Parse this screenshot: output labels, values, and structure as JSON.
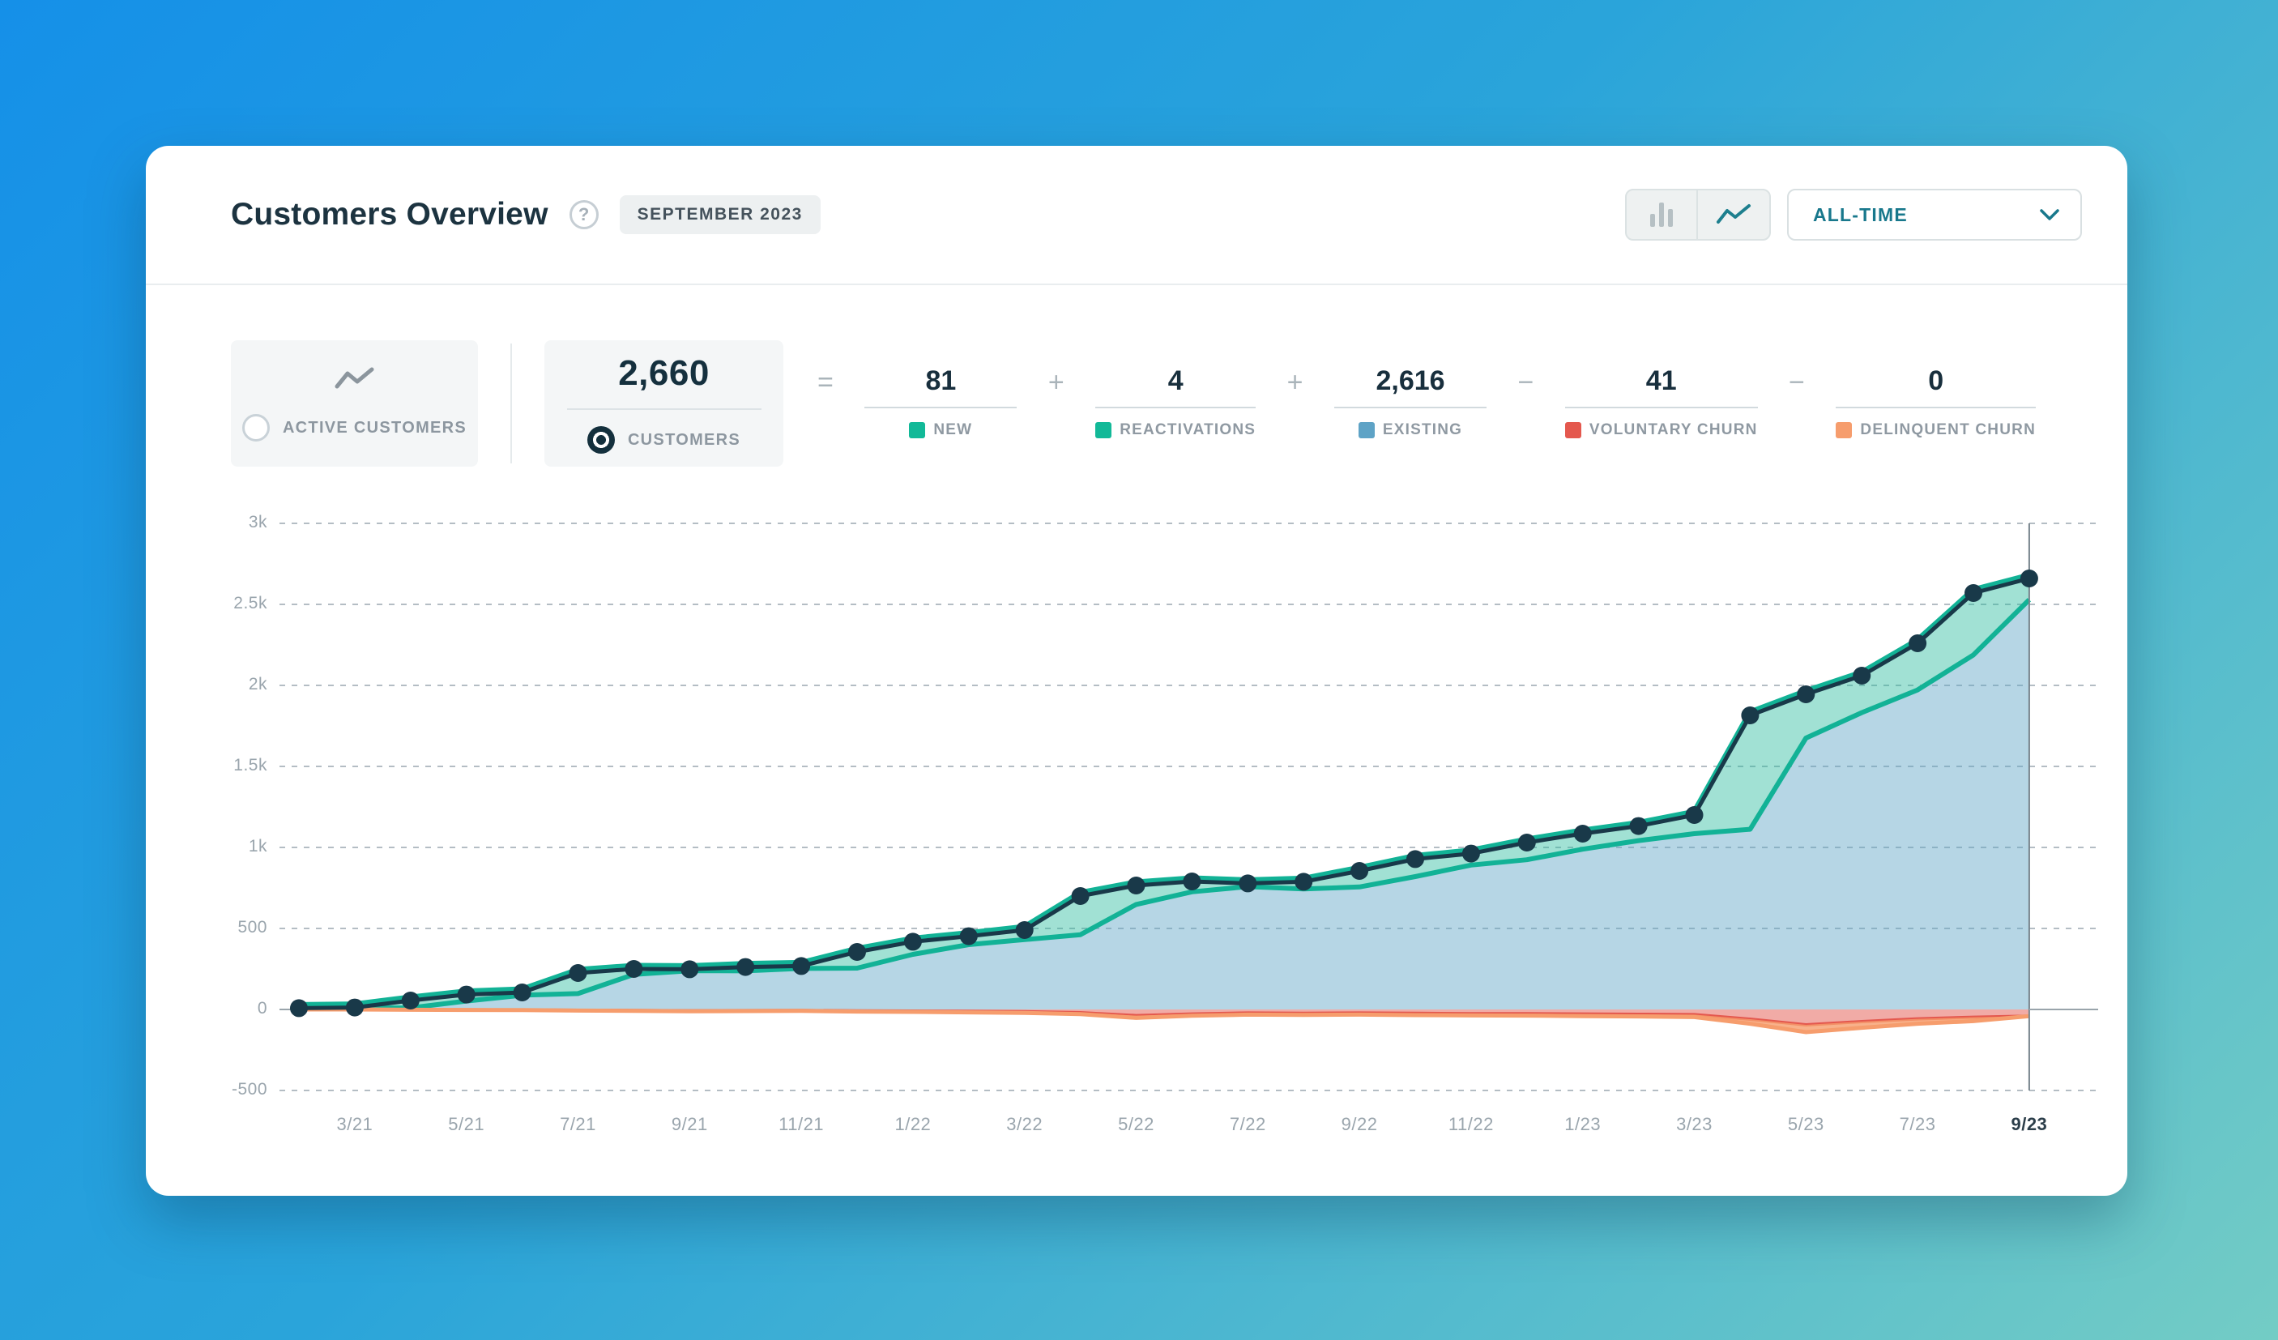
{
  "header": {
    "title": "Customers Overview",
    "help_icon": "?",
    "period_badge": "SEPTEMBER 2023",
    "range_dropdown": {
      "value": "ALL-TIME"
    }
  },
  "metrics": {
    "active_customers_card": {
      "label": "ACTIVE CUSTOMERS",
      "selected": false
    },
    "customers_card": {
      "value": "2,660",
      "label": "CUSTOMERS",
      "selected": true
    },
    "equation": {
      "operators": [
        "=",
        "+",
        "+",
        "−",
        "−"
      ],
      "terms": [
        {
          "value": "81",
          "label": "NEW",
          "color": "#12b998"
        },
        {
          "value": "4",
          "label": "REACTIVATIONS",
          "color": "#12b998"
        },
        {
          "value": "2,616",
          "label": "EXISTING",
          "color": "#5ea3c6"
        },
        {
          "value": "41",
          "label": "VOLUNTARY CHURN",
          "color": "#e4584e"
        },
        {
          "value": "0",
          "label": "DELINQUENT CHURN",
          "color": "#f69d6d"
        }
      ]
    }
  },
  "chart_data": {
    "type": "area",
    "title": "Active customers over time (monthly)",
    "x": [
      "2/21",
      "3/21",
      "4/21",
      "5/21",
      "6/21",
      "7/21",
      "8/21",
      "9/21",
      "10/21",
      "11/21",
      "12/21",
      "1/22",
      "2/22",
      "3/22",
      "4/22",
      "5/22",
      "6/22",
      "7/22",
      "8/22",
      "9/22",
      "10/22",
      "11/22",
      "12/22",
      "1/23",
      "2/23",
      "3/23",
      "4/23",
      "5/23",
      "6/23",
      "7/23",
      "8/23",
      "9/23"
    ],
    "x_tick_labels": [
      "3/21",
      "5/21",
      "7/21",
      "9/21",
      "11/21",
      "1/22",
      "3/22",
      "5/22",
      "7/22",
      "9/22",
      "11/22",
      "1/23",
      "3/23",
      "5/23",
      "7/23",
      "9/23"
    ],
    "highlighted_tick": "9/23",
    "y_tick_labels": [
      "3k",
      "2.5k",
      "2k",
      "1.5k",
      "1k",
      "500",
      "0",
      "-500"
    ],
    "y_tick_values": [
      3000,
      2500,
      2000,
      1500,
      1000,
      500,
      0,
      -500
    ],
    "ylim": [
      -500,
      3000
    ],
    "grid": "dashed horizontal gridlines, solid zero axis, vertical marker at 9/23",
    "legend_position": "none (legend shown in equation row above)",
    "series": [
      {
        "name": "Active customers (total)",
        "values": [
          8,
          12,
          55,
          92,
          105,
          225,
          250,
          248,
          262,
          268,
          355,
          418,
          452,
          490,
          700,
          765,
          790,
          778,
          788,
          855,
          928,
          962,
          1030,
          1085,
          1132,
          1200,
          1815,
          1945,
          2060,
          2260,
          2570,
          2660
        ]
      },
      {
        "name": "Voluntary churn (negative)",
        "values": [
          0,
          0,
          -2,
          -2,
          -3,
          -5,
          -6,
          -8,
          -7,
          -6,
          -9,
          -10,
          -12,
          -14,
          -20,
          -38,
          -28,
          -22,
          -24,
          -22,
          -24,
          -26,
          -26,
          -28,
          -30,
          -32,
          -60,
          -95,
          -75,
          -58,
          -48,
          -41
        ]
      },
      {
        "name": "Delinquent churn (negative)",
        "values": [
          0,
          0,
          0,
          -1,
          -1,
          -2,
          -3,
          -3,
          -3,
          -3,
          -4,
          -5,
          -6,
          -7,
          -9,
          -14,
          -11,
          -10,
          -10,
          -10,
          -11,
          -11,
          -12,
          -13,
          -13,
          -15,
          -28,
          -45,
          -38,
          -30,
          -24,
          0
        ]
      }
    ],
    "colors": {
      "total_line": "#193949",
      "band_stroke": "#12b296",
      "band_fill": "rgba(32,184,152,0.42)",
      "existing_fill": "rgba(94,163,198,0.45)",
      "voluntary_stroke": "#e4584e",
      "voluntary_fill": "rgba(228,88,78,0.5)",
      "delinquent_stroke": "#f69d6d",
      "delinquent_fill": "rgba(246,157,109,0.8)",
      "gridline": "#b4bdc4",
      "marker_line": "#77848c"
    }
  }
}
